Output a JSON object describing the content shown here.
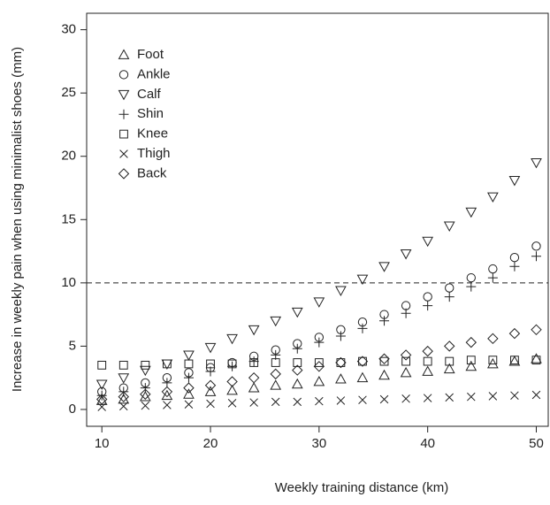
{
  "chart_data": {
    "type": "scatter",
    "x_label": "Weekly training distance (km)",
    "y_label": "Increase in weekly pain when using minimalist shoes (mm)",
    "x": [
      10,
      12,
      14,
      16,
      18,
      20,
      22,
      24,
      26,
      28,
      30,
      32,
      34,
      36,
      38,
      40,
      42,
      44,
      46,
      48,
      50
    ],
    "series": [
      {
        "name": "Foot",
        "marker": "triangle-up",
        "color": "#222222",
        "values": [
          0.7,
          0.8,
          1.0,
          1.1,
          1.2,
          1.4,
          1.5,
          1.7,
          1.9,
          2.0,
          2.2,
          2.4,
          2.5,
          2.7,
          2.9,
          3.0,
          3.2,
          3.4,
          3.6,
          3.8,
          4.0
        ]
      },
      {
        "name": "Ankle",
        "marker": "circle",
        "color": "#222222",
        "values": [
          1.4,
          1.7,
          2.1,
          2.5,
          2.9,
          3.3,
          3.7,
          4.2,
          4.7,
          5.2,
          5.7,
          6.3,
          6.9,
          7.5,
          8.2,
          8.9,
          9.6,
          10.4,
          11.1,
          12.0,
          12.9
        ]
      },
      {
        "name": "Calf",
        "marker": "triangle-down",
        "color": "#222222",
        "values": [
          2.0,
          2.5,
          3.1,
          3.6,
          4.3,
          4.9,
          5.6,
          6.3,
          7.0,
          7.7,
          8.5,
          9.4,
          10.3,
          11.3,
          12.3,
          13.3,
          14.5,
          15.6,
          16.8,
          18.1,
          19.5
        ]
      },
      {
        "name": "Shin",
        "marker": "plus",
        "color": "#222222",
        "values": [
          1.1,
          1.4,
          1.7,
          2.1,
          2.5,
          3.0,
          3.4,
          3.8,
          4.3,
          4.8,
          5.3,
          5.8,
          6.4,
          7.0,
          7.6,
          8.2,
          8.9,
          9.7,
          10.4,
          11.3,
          12.1
        ]
      },
      {
        "name": "Knee",
        "marker": "square",
        "color": "#222222",
        "values": [
          3.5,
          3.5,
          3.5,
          3.6,
          3.6,
          3.6,
          3.6,
          3.7,
          3.7,
          3.7,
          3.7,
          3.7,
          3.8,
          3.8,
          3.8,
          3.8,
          3.8,
          3.9,
          3.9,
          3.9,
          3.9
        ]
      },
      {
        "name": "Thigh",
        "marker": "cross",
        "color": "#222222",
        "values": [
          0.2,
          0.25,
          0.3,
          0.35,
          0.4,
          0.45,
          0.5,
          0.55,
          0.6,
          0.6,
          0.65,
          0.7,
          0.75,
          0.8,
          0.85,
          0.9,
          0.95,
          1.0,
          1.05,
          1.1,
          1.15
        ]
      },
      {
        "name": "Back",
        "marker": "diamond",
        "color": "#222222",
        "values": [
          0.8,
          1.0,
          1.2,
          1.4,
          1.7,
          1.9,
          2.2,
          2.5,
          2.8,
          3.1,
          3.4,
          3.7,
          3.8,
          4.0,
          4.3,
          4.6,
          5.0,
          5.3,
          5.6,
          6.0,
          6.3
        ]
      }
    ],
    "reference_line": 10,
    "xlim": [
      8.6,
      51.1
    ],
    "xticks": [
      10,
      20,
      30,
      40,
      50
    ],
    "ylim": [
      -1.33,
      31.3
    ],
    "yticks": [
      0,
      5,
      10,
      15,
      20,
      25,
      30
    ],
    "legend": "top-left",
    "grid": false
  }
}
